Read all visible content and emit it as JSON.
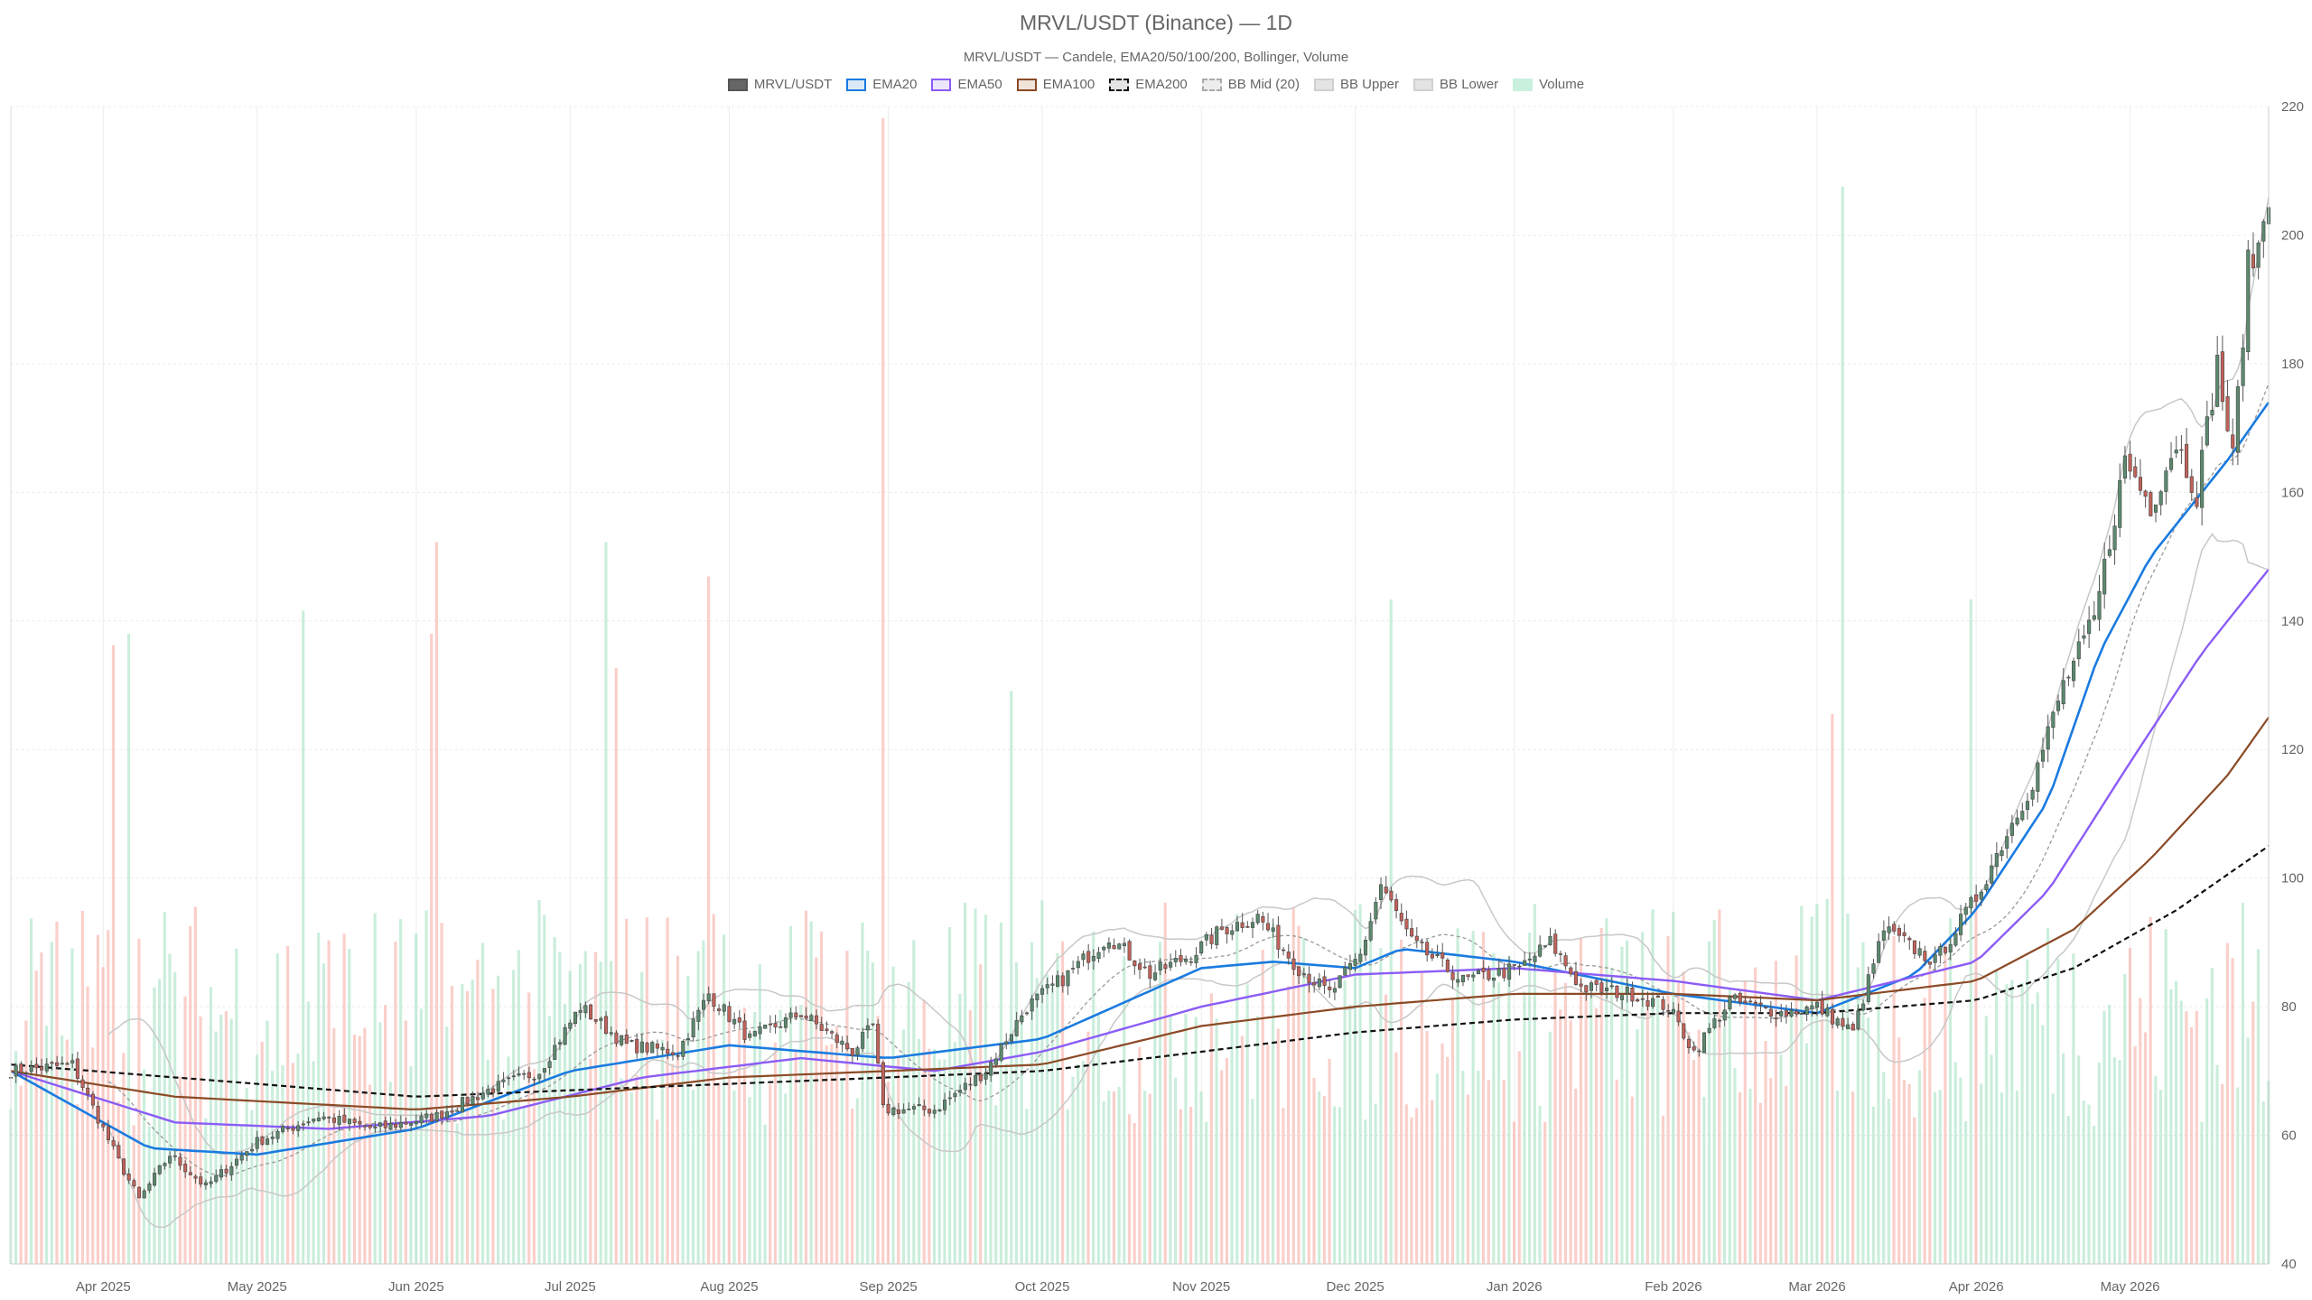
{
  "title": "MRVL/USDT (Binance) — 1D",
  "subtitle": "MRVL/USDT — Candele, EMA20/50/100/200, Bollinger, Volume",
  "colors": {
    "up": "#5b8a6e",
    "down": "#c0625a",
    "vol_up": "#9fe0bd",
    "vol_down": "#f6a89f",
    "ema20": "#1a7be0",
    "ema50": "#8b5cf6",
    "ema100": "#8b4a26",
    "ema200": "#111111",
    "bb_mid": "#999999",
    "bb_band": "#c8c8c8",
    "grid": "#ececec"
  },
  "legend": [
    {
      "key": "candles",
      "label": "MRVL/USDT",
      "fill": "#666666",
      "border": "#555555",
      "style": "solid"
    },
    {
      "key": "ema20",
      "label": "EMA20",
      "fill": "#dbe9f7",
      "border": "#1a7be0",
      "style": "solid"
    },
    {
      "key": "ema50",
      "label": "EMA50",
      "fill": "#ece6fb",
      "border": "#8b5cf6",
      "style": "solid"
    },
    {
      "key": "ema100",
      "label": "EMA100",
      "fill": "#efe3da",
      "border": "#8b4a26",
      "style": "solid"
    },
    {
      "key": "ema200",
      "label": "EMA200",
      "fill": "#e4e4e4",
      "border": "#111111",
      "style": "dashed"
    },
    {
      "key": "bb_mid",
      "label": "BB Mid (20)",
      "fill": "#ededed",
      "border": "#aaaaaa",
      "style": "dashed"
    },
    {
      "key": "bb_upper",
      "label": "BB Upper",
      "fill": "#e4e4e4",
      "border": "#d0d0d0",
      "style": "solid"
    },
    {
      "key": "bb_lower",
      "label": "BB Lower",
      "fill": "#e4e4e4",
      "border": "#d0d0d0",
      "style": "solid"
    },
    {
      "key": "volume",
      "label": "Volume",
      "fill": "#c8f0dc",
      "border": "#c8f0dc",
      "style": "solid"
    }
  ],
  "chart_data": {
    "type": "candlestick",
    "x_range": [
      "2025-03-14",
      "2026-05-28"
    ],
    "ylim": [
      40,
      220
    ],
    "yticks": [
      40,
      60,
      80,
      100,
      120,
      140,
      160,
      180,
      200,
      220
    ],
    "y_axis_position": "right",
    "x_ticks": [
      {
        "label": "Apr 2025",
        "date": "2025-04-01"
      },
      {
        "label": "May 2025",
        "date": "2025-05-01"
      },
      {
        "label": "Jun 2025",
        "date": "2025-06-01"
      },
      {
        "label": "Jul 2025",
        "date": "2025-07-01"
      },
      {
        "label": "Aug 2025",
        "date": "2025-08-01"
      },
      {
        "label": "Sep 2025",
        "date": "2025-09-01"
      },
      {
        "label": "Oct 2025",
        "date": "2025-10-01"
      },
      {
        "label": "Nov 2025",
        "date": "2025-11-01"
      },
      {
        "label": "Dec 2025",
        "date": "2025-12-01"
      },
      {
        "label": "Jan 2026",
        "date": "2026-01-01"
      },
      {
        "label": "Feb 2026",
        "date": "2026-02-01"
      },
      {
        "label": "Mar 2026",
        "date": "2026-03-01"
      },
      {
        "label": "Apr 2026",
        "date": "2026-04-01"
      },
      {
        "label": "May 2026",
        "date": "2026-05-01"
      }
    ],
    "price_anchors": [
      {
        "date": "2025-03-14",
        "close": 70
      },
      {
        "date": "2025-03-26",
        "close": 71
      },
      {
        "date": "2025-04-04",
        "close": 56
      },
      {
        "date": "2025-04-08",
        "close": 50
      },
      {
        "date": "2025-04-14",
        "close": 57
      },
      {
        "date": "2025-04-21",
        "close": 52
      },
      {
        "date": "2025-05-01",
        "close": 59
      },
      {
        "date": "2025-05-13",
        "close": 63
      },
      {
        "date": "2025-05-24",
        "close": 61
      },
      {
        "date": "2025-06-05",
        "close": 63
      },
      {
        "date": "2025-06-15",
        "close": 67
      },
      {
        "date": "2025-06-25",
        "close": 70
      },
      {
        "date": "2025-07-03",
        "close": 80
      },
      {
        "date": "2025-07-12",
        "close": 74
      },
      {
        "date": "2025-07-22",
        "close": 73
      },
      {
        "date": "2025-07-28",
        "close": 82
      },
      {
        "date": "2025-08-05",
        "close": 75
      },
      {
        "date": "2025-08-15",
        "close": 79
      },
      {
        "date": "2025-08-25",
        "close": 73
      },
      {
        "date": "2025-08-29",
        "close": 77
      },
      {
        "date": "2025-08-31",
        "close": 64
      },
      {
        "date": "2025-09-10",
        "close": 64
      },
      {
        "date": "2025-09-20",
        "close": 70
      },
      {
        "date": "2025-09-28",
        "close": 80
      },
      {
        "date": "2025-10-06",
        "close": 85
      },
      {
        "date": "2025-10-14",
        "close": 91
      },
      {
        "date": "2025-10-22",
        "close": 85
      },
      {
        "date": "2025-10-30",
        "close": 88
      },
      {
        "date": "2025-11-05",
        "close": 92
      },
      {
        "date": "2025-11-12",
        "close": 94
      },
      {
        "date": "2025-11-20",
        "close": 86
      },
      {
        "date": "2025-11-26",
        "close": 82
      },
      {
        "date": "2025-12-02",
        "close": 88
      },
      {
        "date": "2025-12-06",
        "close": 99
      },
      {
        "date": "2025-12-12",
        "close": 90
      },
      {
        "date": "2025-12-22",
        "close": 84
      },
      {
        "date": "2026-01-02",
        "close": 86
      },
      {
        "date": "2026-01-08",
        "close": 90
      },
      {
        "date": "2026-01-14",
        "close": 83
      },
      {
        "date": "2026-01-24",
        "close": 82
      },
      {
        "date": "2026-01-31",
        "close": 80
      },
      {
        "date": "2026-02-05",
        "close": 73
      },
      {
        "date": "2026-02-12",
        "close": 81
      },
      {
        "date": "2026-02-22",
        "close": 79
      },
      {
        "date": "2026-03-01",
        "close": 80
      },
      {
        "date": "2026-03-08",
        "close": 76
      },
      {
        "date": "2026-03-14",
        "close": 92
      },
      {
        "date": "2026-03-24",
        "close": 87
      },
      {
        "date": "2026-04-01",
        "close": 97
      },
      {
        "date": "2026-04-07",
        "close": 107
      },
      {
        "date": "2026-04-12",
        "close": 115
      },
      {
        "date": "2026-04-18",
        "close": 130
      },
      {
        "date": "2026-04-24",
        "close": 140
      },
      {
        "date": "2026-04-30",
        "close": 165
      },
      {
        "date": "2026-05-05",
        "close": 158
      },
      {
        "date": "2026-05-10",
        "close": 168
      },
      {
        "date": "2026-05-14",
        "close": 160
      },
      {
        "date": "2026-05-18",
        "close": 180
      },
      {
        "date": "2026-05-21",
        "close": 165
      },
      {
        "date": "2026-05-24",
        "close": 195
      },
      {
        "date": "2026-05-26",
        "close": 198
      },
      {
        "date": "2026-05-28",
        "close": 207
      }
    ],
    "ema_anchors": {
      "ema20": [
        [
          "2025-03-14",
          70
        ],
        [
          "2025-04-10",
          58
        ],
        [
          "2025-05-01",
          57
        ],
        [
          "2025-06-01",
          61
        ],
        [
          "2025-07-01",
          70
        ],
        [
          "2025-08-01",
          74
        ],
        [
          "2025-09-01",
          72
        ],
        [
          "2025-10-01",
          75
        ],
        [
          "2025-11-01",
          86
        ],
        [
          "2025-11-15",
          87
        ],
        [
          "2025-12-01",
          86
        ],
        [
          "2025-12-10",
          89
        ],
        [
          "2026-01-01",
          87
        ],
        [
          "2026-02-01",
          82
        ],
        [
          "2026-03-01",
          79
        ],
        [
          "2026-03-20",
          85
        ],
        [
          "2026-04-01",
          95
        ],
        [
          "2026-04-15",
          112
        ],
        [
          "2026-04-25",
          135
        ],
        [
          "2026-05-05",
          150
        ],
        [
          "2026-05-20",
          165
        ],
        [
          "2026-05-28",
          174
        ]
      ],
      "ema50": [
        [
          "2025-03-14",
          70
        ],
        [
          "2025-04-15",
          62
        ],
        [
          "2025-05-15",
          61
        ],
        [
          "2025-06-15",
          63
        ],
        [
          "2025-07-15",
          69
        ],
        [
          "2025-08-15",
          72
        ],
        [
          "2025-09-10",
          70
        ],
        [
          "2025-10-01",
          73
        ],
        [
          "2025-11-01",
          80
        ],
        [
          "2025-12-01",
          85
        ],
        [
          "2026-01-01",
          86
        ],
        [
          "2026-02-01",
          84
        ],
        [
          "2026-03-01",
          81
        ],
        [
          "2026-04-01",
          87
        ],
        [
          "2026-04-15",
          98
        ],
        [
          "2026-05-01",
          118
        ],
        [
          "2026-05-15",
          135
        ],
        [
          "2026-05-28",
          148
        ]
      ],
      "ema100": [
        [
          "2025-03-14",
          70
        ],
        [
          "2025-04-15",
          66
        ],
        [
          "2025-06-01",
          64
        ],
        [
          "2025-07-01",
          66
        ],
        [
          "2025-08-01",
          69
        ],
        [
          "2025-09-01",
          70
        ],
        [
          "2025-10-01",
          71
        ],
        [
          "2025-11-01",
          77
        ],
        [
          "2025-12-01",
          80
        ],
        [
          "2026-01-01",
          82
        ],
        [
          "2026-02-01",
          82
        ],
        [
          "2026-03-01",
          81
        ],
        [
          "2026-04-01",
          84
        ],
        [
          "2026-04-20",
          92
        ],
        [
          "2026-05-05",
          103
        ],
        [
          "2026-05-20",
          116
        ],
        [
          "2026-05-28",
          125
        ]
      ],
      "ema200": [
        [
          "2025-03-14",
          71
        ],
        [
          "2025-05-01",
          68
        ],
        [
          "2025-06-01",
          66
        ],
        [
          "2025-07-01",
          67
        ],
        [
          "2025-08-01",
          68
        ],
        [
          "2025-09-01",
          69
        ],
        [
          "2025-10-01",
          70
        ],
        [
          "2025-11-01",
          73
        ],
        [
          "2025-12-01",
          76
        ],
        [
          "2026-01-01",
          78
        ],
        [
          "2026-02-01",
          79
        ],
        [
          "2026-03-01",
          79
        ],
        [
          "2026-04-01",
          81
        ],
        [
          "2026-04-20",
          86
        ],
        [
          "2026-05-10",
          95
        ],
        [
          "2026-05-28",
          105
        ]
      ]
    },
    "volume_ylim": [
      0,
      1
    ],
    "volume_spikes": [
      {
        "date": "2025-04-03",
        "level": 0.54,
        "dir": "down"
      },
      {
        "date": "2025-04-06",
        "level": 0.55,
        "dir": "up"
      },
      {
        "date": "2025-05-10",
        "level": 0.57,
        "dir": "up"
      },
      {
        "date": "2025-06-04",
        "level": 0.55,
        "dir": "down"
      },
      {
        "date": "2025-06-05",
        "level": 0.63,
        "dir": "down"
      },
      {
        "date": "2025-07-08",
        "level": 0.63,
        "dir": "up"
      },
      {
        "date": "2025-07-10",
        "level": 0.52,
        "dir": "down"
      },
      {
        "date": "2025-07-28",
        "level": 0.6,
        "dir": "down"
      },
      {
        "date": "2025-08-31",
        "level": 1.0,
        "dir": "down"
      },
      {
        "date": "2025-09-25",
        "level": 0.5,
        "dir": "up"
      },
      {
        "date": "2025-12-08",
        "level": 0.58,
        "dir": "up"
      },
      {
        "date": "2026-03-06",
        "level": 0.94,
        "dir": "up"
      },
      {
        "date": "2026-03-04",
        "level": 0.48,
        "dir": "down"
      },
      {
        "date": "2026-03-31",
        "level": 0.58,
        "dir": "up"
      }
    ]
  }
}
